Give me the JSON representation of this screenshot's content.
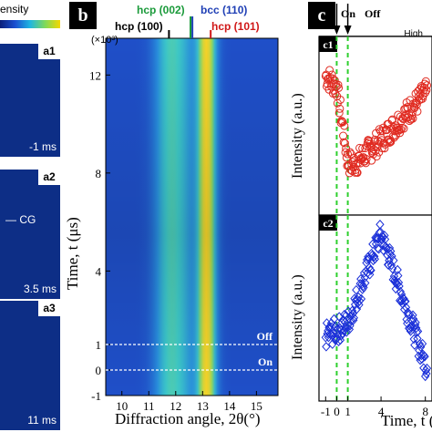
{
  "panel_a": {
    "colorbar_title": "ensity",
    "colorbar_high": "High",
    "frames": [
      {
        "label": "a1",
        "time": "-1 ms"
      },
      {
        "label": "a2",
        "time": "3.5 ms",
        "marker": "CG"
      },
      {
        "label": "a3",
        "time": "11 ms"
      }
    ]
  },
  "panel_b": {
    "label": "b",
    "peak_labels": {
      "hcp002": "hcp (002)",
      "bcc110": "bcc (110)",
      "hcp100": "hcp (100)",
      "hcp101": "hcp (101)"
    },
    "colors": {
      "hcp002": "#1a9a3a",
      "bcc110": "#1f3fb5",
      "hcp101": "#d01818",
      "hcp100": "#000000"
    },
    "off_label": "Off",
    "on_label": "On"
  },
  "panel_c": {
    "label": "c",
    "on_label": "On",
    "off_label": "Off",
    "sub1": "c1",
    "sub2": "c2",
    "c1_color": "#e02a20",
    "c2_color": "#1a2fd8"
  },
  "chart_data": [
    {
      "type": "heatmap",
      "xlabel": "Diffraction angle, 2θ(°)",
      "ylabel": "Time, t (μs)",
      "ymultiplier": "(×10³)",
      "xlim": [
        9.4,
        15.8
      ],
      "ylim": [
        -1,
        13.5
      ],
      "xticks": [
        "10",
        "11",
        "12",
        "13",
        "14",
        "15"
      ],
      "yticks": [
        "-1",
        "0",
        "1",
        "4",
        "8",
        "12"
      ],
      "peaks": [
        {
          "name": "hcp (100)",
          "x": 11.75
        },
        {
          "name": "hcp (002)",
          "x": 12.55
        },
        {
          "name": "bcc (110)",
          "x": 12.62
        },
        {
          "name": "hcp (101)",
          "x": 13.3
        }
      ],
      "bands": [
        {
          "center": 11.65,
          "width": 0.5,
          "intensity": 0.45
        },
        {
          "center": 12.25,
          "width": 0.5,
          "intensity": 0.38
        },
        {
          "center": 13.15,
          "width": 0.35,
          "intensity": 1.0
        }
      ],
      "lines": [
        {
          "label": "Off",
          "y": 1
        },
        {
          "label": "On",
          "y": 0
        }
      ]
    },
    {
      "type": "scatter",
      "xlabel": "Time, t (",
      "ylabel": "Intensity (a.u.)",
      "xticks": [
        "-1",
        "0",
        "1",
        "4",
        "8"
      ],
      "panels": [
        {
          "name": "c1",
          "y_trend": [
            [
              -1,
              0.78
            ],
            [
              0,
              0.72
            ],
            [
              1,
              0.3
            ],
            [
              1.5,
              0.28
            ],
            [
              4,
              0.42
            ],
            [
              6,
              0.55
            ],
            [
              8,
              0.68
            ]
          ]
        },
        {
          "name": "c2",
          "y_trend": [
            [
              -1,
              0.35
            ],
            [
              0,
              0.38
            ],
            [
              1,
              0.42
            ],
            [
              4,
              0.9
            ],
            [
              6,
              0.55
            ],
            [
              8,
              0.2
            ]
          ]
        }
      ],
      "vlines": [
        {
          "label": "On",
          "x": 0
        },
        {
          "label": "Off",
          "x": 1
        }
      ]
    }
  ]
}
